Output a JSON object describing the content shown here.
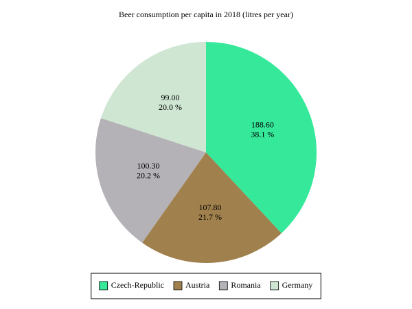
{
  "chart_data": {
    "type": "pie",
    "title": "Beer consumption per capita in 2018 (litres per year)",
    "categories": [
      "Czech-Republic",
      "Austria",
      "Romania",
      "Germany"
    ],
    "values": [
      188.6,
      107.8,
      100.3,
      99.0
    ],
    "value_labels": [
      "188.60",
      "107.80",
      "100.30",
      "99.00"
    ],
    "percent_labels": [
      "38.1 %",
      "21.7 %",
      "20.2 %",
      "20.0 %"
    ],
    "colors": [
      "#35e89a",
      "#a0804c",
      "#b4b2b6",
      "#cfe6d3"
    ],
    "legend": "bottom"
  }
}
